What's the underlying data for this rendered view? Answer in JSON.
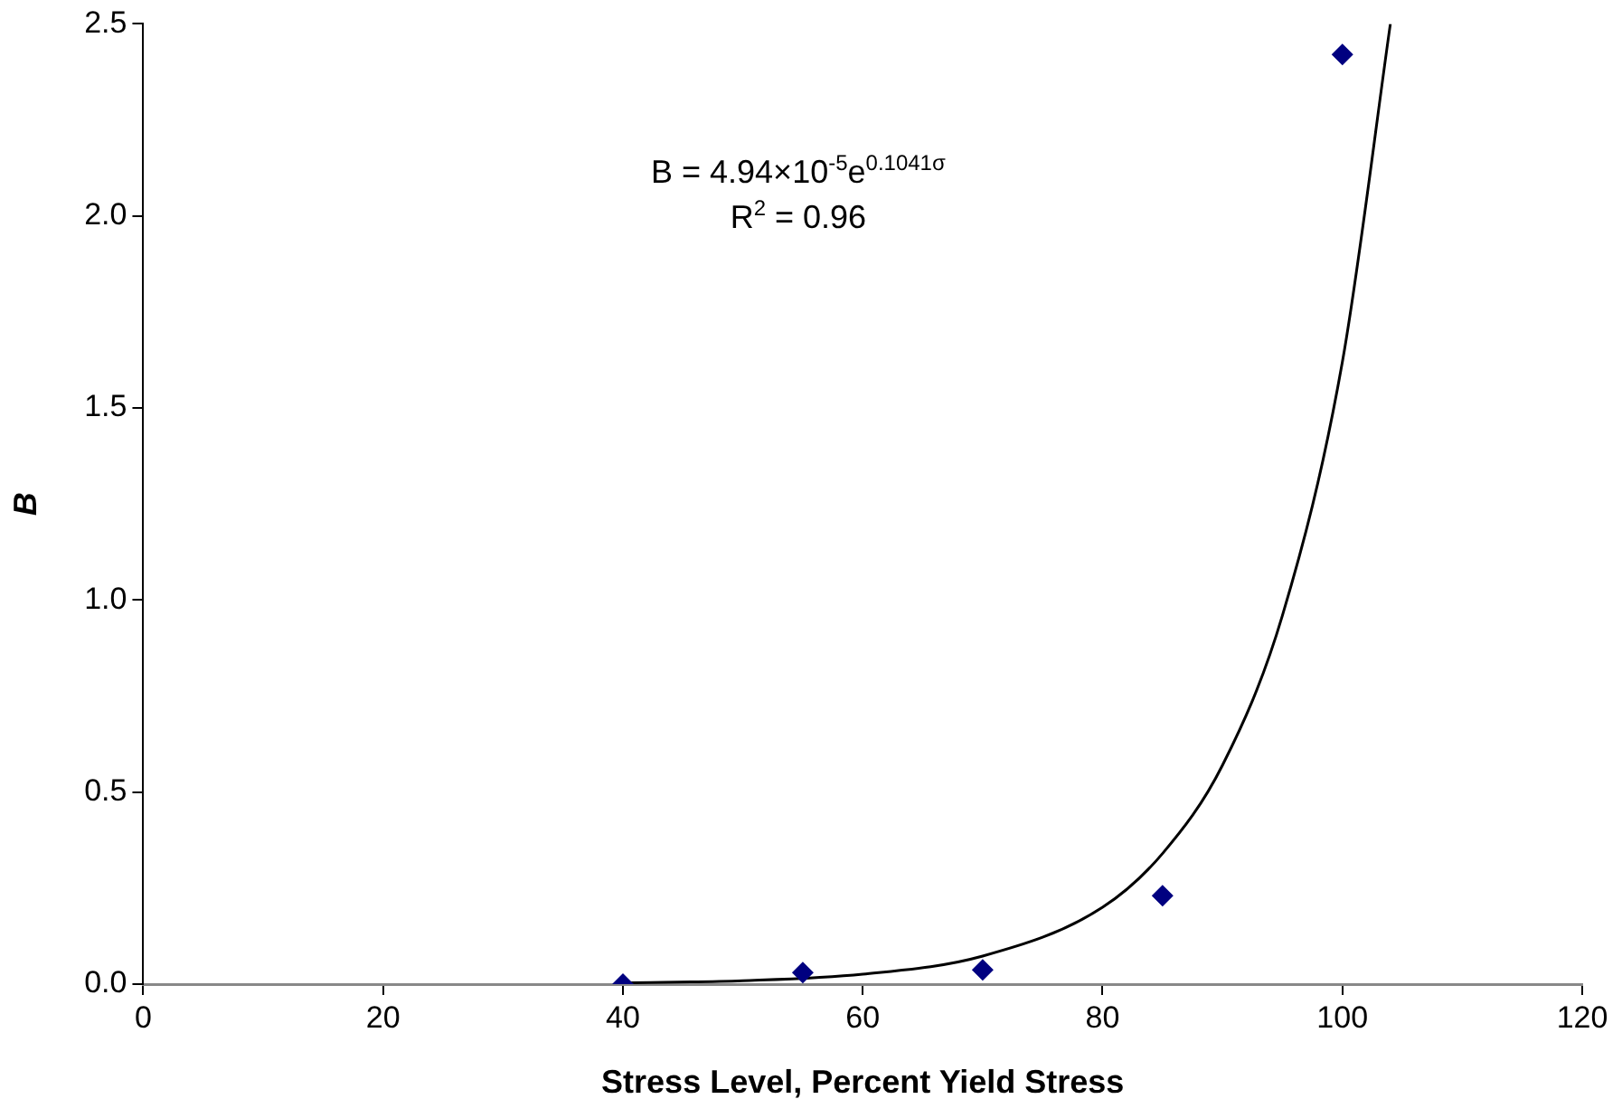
{
  "chart_data": {
    "type": "scatter",
    "xlabel": "Stress Level, Percent Yield Stress",
    "ylabel": "B",
    "annotations": [
      "B = 4.94×10$^{-5}$e$^{0.1041σ}$",
      "R$^{2}$ = 0.96"
    ],
    "marker": "diamond",
    "grid": false,
    "legend": false,
    "xlim": [
      0,
      120
    ],
    "xticks": [
      0,
      20,
      40,
      60,
      80,
      100,
      120
    ],
    "ylim": [
      0,
      2.5
    ],
    "yticks": [
      {
        "value": 0,
        "label": "0.0"
      },
      {
        "value": 0.5,
        "label": "0.5"
      },
      {
        "value": 1,
        "label": "1.0"
      },
      {
        "value": 1.5,
        "label": "1.5"
      },
      {
        "value": 2,
        "label": "2.0"
      },
      {
        "value": 2.5,
        "label": "2.5"
      }
    ],
    "series": [
      {
        "type": "scatter",
        "color": "#000080",
        "x": [
          40,
          55,
          70,
          85,
          100
        ],
        "values": [
          0,
          0.03,
          0.037,
          0.23,
          2.42
        ]
      },
      {
        "type": "line",
        "color": "#000000",
        "marker": "none",
        "x": [
          40,
          50,
          60,
          70,
          80,
          85,
          90,
          95,
          100,
          104
        ],
        "values": [
          0.003,
          0.009,
          0.026,
          0.073,
          0.2,
          0.34,
          0.57,
          0.96,
          1.62,
          2.5
        ]
      }
    ]
  }
}
